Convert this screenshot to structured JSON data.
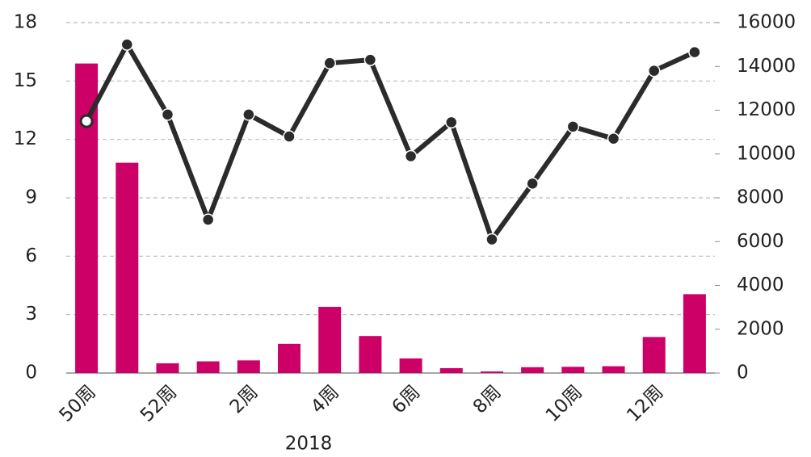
{
  "chart_data": {
    "type": "bar_line",
    "x_label": "2018",
    "categories": [
      "50周",
      null,
      "52周",
      null,
      "2周",
      null,
      "4周",
      null,
      "6周",
      null,
      "8周",
      null,
      "10周",
      null,
      "12周",
      null
    ],
    "series": [
      {
        "type": "bar",
        "color": "#cc0066",
        "values": [
          15.9,
          10.8,
          0.5,
          0.6,
          0.65,
          1.5,
          3.4,
          1.9,
          0.75,
          0.25,
          0.08,
          0.3,
          0.32,
          0.35,
          1.85,
          4.05
        ]
      },
      {
        "type": "line",
        "axis": "y2",
        "color": "#2b2b2b",
        "values": [
          11500,
          15000,
          11800,
          7000,
          11800,
          10800,
          14150,
          14300,
          9900,
          11450,
          6100,
          8650,
          11250,
          10700,
          13800,
          14650
        ]
      }
    ],
    "ylim": [
      0,
      18
    ],
    "yticks": [
      0,
      3,
      6,
      9,
      12,
      15,
      18
    ],
    "y2lim": [
      0,
      16000
    ],
    "y2ticks": [
      0,
      2000,
      4000,
      6000,
      8000,
      10000,
      12000,
      14000,
      16000
    ],
    "grid": true
  }
}
